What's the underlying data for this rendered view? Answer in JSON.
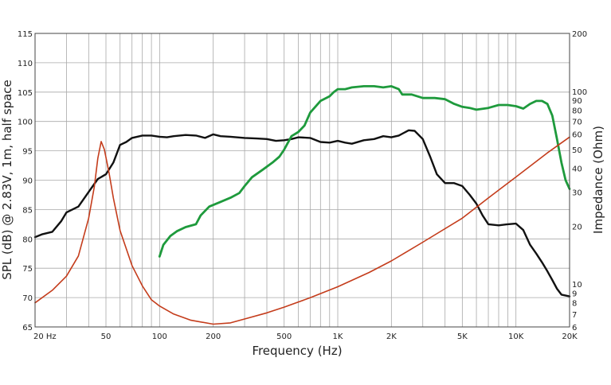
{
  "chart_data": {
    "type": "line",
    "xlabel": "Frequency (Hz)",
    "ylabel": "SPL (dB) @ 2.83V, 1m, half space",
    "y2label": "Impedance (Ohm)",
    "x_scale": "log",
    "xlim": [
      20,
      20000
    ],
    "ylim": [
      65,
      115
    ],
    "y2lim": [
      6,
      200
    ],
    "y2_scale": "log",
    "grid": true,
    "x_major_ticks": [
      {
        "value": 20,
        "label": "20  Hz"
      },
      {
        "value": 50,
        "label": "50"
      },
      {
        "value": 100,
        "label": "100"
      },
      {
        "value": 200,
        "label": "200"
      },
      {
        "value": 500,
        "label": "500"
      },
      {
        "value": 1000,
        "label": "1K"
      },
      {
        "value": 2000,
        "label": "2K"
      },
      {
        "value": 5000,
        "label": "5K"
      },
      {
        "value": 10000,
        "label": "10K"
      },
      {
        "value": 20000,
        "label": "20K"
      }
    ],
    "x_minor_ticks": [
      30,
      40,
      60,
      70,
      80,
      90,
      300,
      400,
      600,
      700,
      800,
      900,
      3000,
      4000,
      6000,
      7000,
      8000,
      9000
    ],
    "y_ticks": [
      65,
      70,
      75,
      80,
      85,
      90,
      95,
      100,
      105,
      110,
      115
    ],
    "y2_ticks": [
      6,
      7,
      8,
      9,
      10,
      20,
      30,
      40,
      50,
      60,
      70,
      80,
      90,
      100,
      200
    ],
    "series": [
      {
        "color": "#111111",
        "axis": "left",
        "width": 2.4,
        "points": [
          [
            20,
            80.3
          ],
          [
            22,
            80.8
          ],
          [
            25,
            81.2
          ],
          [
            28,
            83
          ],
          [
            30,
            84.5
          ],
          [
            35,
            85.5
          ],
          [
            40,
            88
          ],
          [
            45,
            90.2
          ],
          [
            50,
            91
          ],
          [
            55,
            93
          ],
          [
            60,
            96
          ],
          [
            65,
            96.5
          ],
          [
            70,
            97.2
          ],
          [
            80,
            97.6
          ],
          [
            90,
            97.6
          ],
          [
            100,
            97.4
          ],
          [
            110,
            97.3
          ],
          [
            120,
            97.5
          ],
          [
            140,
            97.7
          ],
          [
            160,
            97.6
          ],
          [
            180,
            97.2
          ],
          [
            200,
            97.8
          ],
          [
            220,
            97.5
          ],
          [
            250,
            97.4
          ],
          [
            300,
            97.2
          ],
          [
            350,
            97.1
          ],
          [
            400,
            97
          ],
          [
            450,
            96.7
          ],
          [
            500,
            96.8
          ],
          [
            550,
            97
          ],
          [
            600,
            97.3
          ],
          [
            700,
            97.2
          ],
          [
            800,
            96.5
          ],
          [
            900,
            96.4
          ],
          [
            1000,
            96.7
          ],
          [
            1100,
            96.4
          ],
          [
            1200,
            96.2
          ],
          [
            1400,
            96.8
          ],
          [
            1600,
            97
          ],
          [
            1800,
            97.5
          ],
          [
            2000,
            97.3
          ],
          [
            2200,
            97.6
          ],
          [
            2500,
            98.5
          ],
          [
            2700,
            98.4
          ],
          [
            3000,
            97
          ],
          [
            3300,
            94
          ],
          [
            3600,
            91
          ],
          [
            4000,
            89.5
          ],
          [
            4500,
            89.5
          ],
          [
            5000,
            89
          ],
          [
            5500,
            87.5
          ],
          [
            6000,
            86
          ],
          [
            6500,
            84
          ],
          [
            7000,
            82.5
          ],
          [
            8000,
            82.3
          ],
          [
            9000,
            82.5
          ],
          [
            10000,
            82.6
          ],
          [
            11000,
            81.5
          ],
          [
            12000,
            79
          ],
          [
            13000,
            77.5
          ],
          [
            14000,
            76
          ],
          [
            15000,
            74.5
          ],
          [
            16000,
            73
          ],
          [
            17000,
            71.5
          ],
          [
            18000,
            70.5
          ],
          [
            20000,
            70.2
          ]
        ]
      },
      {
        "color": "#1e9a3c",
        "axis": "left",
        "width": 2.8,
        "points": [
          [
            100,
            77
          ],
          [
            105,
            79
          ],
          [
            115,
            80.5
          ],
          [
            125,
            81.3
          ],
          [
            140,
            82
          ],
          [
            160,
            82.5
          ],
          [
            170,
            84
          ],
          [
            190,
            85.5
          ],
          [
            220,
            86.3
          ],
          [
            250,
            87
          ],
          [
            280,
            87.8
          ],
          [
            300,
            89
          ],
          [
            330,
            90.5
          ],
          [
            380,
            91.8
          ],
          [
            430,
            93
          ],
          [
            470,
            94
          ],
          [
            500,
            95.2
          ],
          [
            550,
            97.5
          ],
          [
            600,
            98.2
          ],
          [
            650,
            99.3
          ],
          [
            700,
            101.5
          ],
          [
            800,
            103.5
          ],
          [
            900,
            104.3
          ],
          [
            950,
            105
          ],
          [
            1000,
            105.5
          ],
          [
            1100,
            105.5
          ],
          [
            1200,
            105.8
          ],
          [
            1400,
            106
          ],
          [
            1600,
            106
          ],
          [
            1800,
            105.8
          ],
          [
            2000,
            106
          ],
          [
            2200,
            105.5
          ],
          [
            2300,
            104.6
          ],
          [
            2600,
            104.6
          ],
          [
            3000,
            104
          ],
          [
            3500,
            104
          ],
          [
            4000,
            103.8
          ],
          [
            4500,
            103
          ],
          [
            5000,
            102.5
          ],
          [
            5500,
            102.3
          ],
          [
            6000,
            102
          ],
          [
            7000,
            102.3
          ],
          [
            8000,
            102.8
          ],
          [
            9000,
            102.8
          ],
          [
            10000,
            102.6
          ],
          [
            11000,
            102.2
          ],
          [
            12000,
            103
          ],
          [
            13000,
            103.5
          ],
          [
            14000,
            103.5
          ],
          [
            15000,
            103
          ],
          [
            16000,
            101
          ],
          [
            17000,
            97
          ],
          [
            18000,
            93
          ],
          [
            19000,
            90
          ],
          [
            20000,
            88.5
          ]
        ]
      },
      {
        "color": "#c43c1b",
        "axis": "right",
        "width": 1.6,
        "points": [
          [
            20,
            8
          ],
          [
            25,
            9.3
          ],
          [
            30,
            11
          ],
          [
            35,
            14
          ],
          [
            40,
            22
          ],
          [
            43,
            32
          ],
          [
            45,
            45
          ],
          [
            47,
            55
          ],
          [
            49,
            50
          ],
          [
            52,
            38
          ],
          [
            55,
            28
          ],
          [
            60,
            19
          ],
          [
            70,
            12.5
          ],
          [
            80,
            9.8
          ],
          [
            90,
            8.3
          ],
          [
            100,
            7.7
          ],
          [
            120,
            7
          ],
          [
            150,
            6.5
          ],
          [
            200,
            6.2
          ],
          [
            250,
            6.3
          ],
          [
            300,
            6.6
          ],
          [
            400,
            7.1
          ],
          [
            500,
            7.6
          ],
          [
            700,
            8.5
          ],
          [
            1000,
            9.7
          ],
          [
            1500,
            11.5
          ],
          [
            2000,
            13.2
          ],
          [
            3000,
            16.5
          ],
          [
            5000,
            22
          ],
          [
            7000,
            28
          ],
          [
            10000,
            36
          ],
          [
            15000,
            48
          ],
          [
            20000,
            58
          ]
        ]
      }
    ]
  }
}
